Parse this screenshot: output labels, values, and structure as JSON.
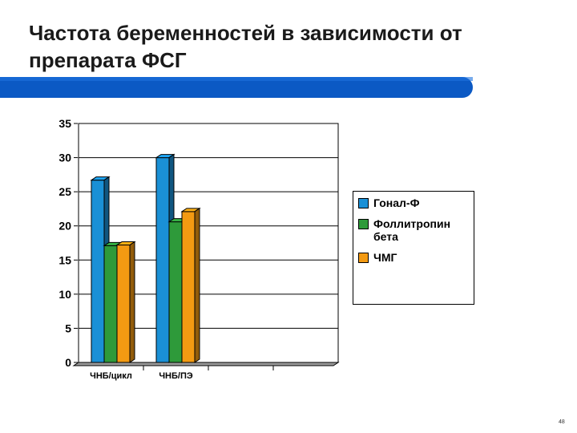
{
  "slide": {
    "title": "Частота беременностей в зависимости от препарата ФСГ",
    "number": "48",
    "accent_color": "#0b59c4"
  },
  "chart_data": {
    "type": "bar",
    "style": "3d-clustered",
    "categories": [
      "ЧНБ/цикл",
      "ЧНБ/ПЭ",
      "",
      ""
    ],
    "series": [
      {
        "name": "Гонал-Ф",
        "color": "#1a90d6",
        "values": [
          26.7,
          30,
          null,
          null
        ]
      },
      {
        "name": "Фоллитропин бета",
        "color": "#2e9a3a",
        "values": [
          17.1,
          20.6,
          null,
          null
        ]
      },
      {
        "name": "ЧМГ",
        "color": "#f39a12",
        "values": [
          17.2,
          22.1,
          null,
          null
        ]
      }
    ],
    "ylim": [
      0,
      35
    ],
    "yticks": [
      "0",
      "5",
      "10",
      "15",
      "20",
      "25",
      "30",
      "35"
    ],
    "grid": true,
    "legend_position": "right"
  }
}
